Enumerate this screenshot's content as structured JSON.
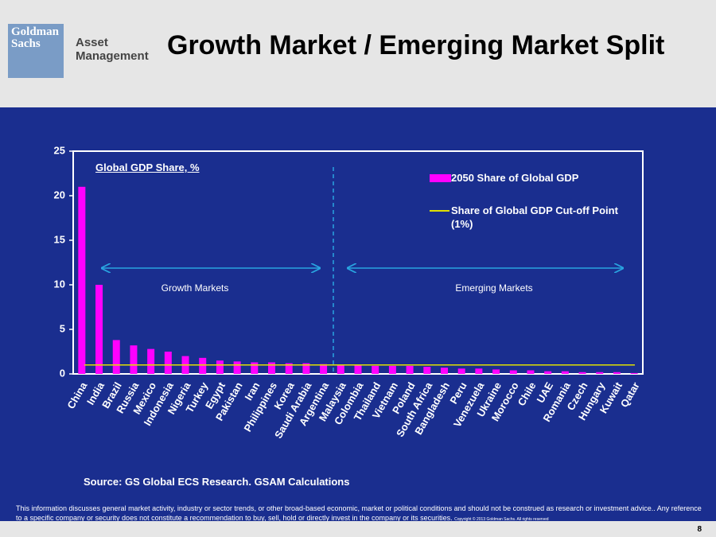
{
  "header": {
    "logo": "Goldman Sachs",
    "division": "Asset Management",
    "title": "Growth Market / Emerging Market Split"
  },
  "chart_data": {
    "type": "bar",
    "y_label": "Global GDP Share, %",
    "categories": [
      "China",
      "India",
      "Brazil",
      "Russia",
      "Mexico",
      "Indonesia",
      "Nigeria",
      "Turkey",
      "Egypt",
      "Pakistan",
      "Iran",
      "Philippines",
      "Korea",
      "Saudi Arabia",
      "Argentina",
      "Malaysia",
      "Colombia",
      "Thailand",
      "Vietnam",
      "Poland",
      "South Africa",
      "Bangladesh",
      "Peru",
      "Venezuela",
      "Ukraine",
      "Morocco",
      "Chile",
      "UAE",
      "Romania",
      "Czech",
      "Hungary",
      "Kuwait",
      "Qatar"
    ],
    "series": [
      {
        "name": "2050 Share of Global GDP",
        "color": "#ff00ff",
        "values": [
          21,
          10,
          3.8,
          3.2,
          2.8,
          2.5,
          2.0,
          1.8,
          1.5,
          1.4,
          1.3,
          1.3,
          1.2,
          1.2,
          1.1,
          1.0,
          1.0,
          0.9,
          0.9,
          0.9,
          0.8,
          0.7,
          0.6,
          0.6,
          0.5,
          0.4,
          0.4,
          0.3,
          0.3,
          0.2,
          0.2,
          0.2,
          0.1
        ]
      }
    ],
    "reference_line": {
      "name": "Share of Global GDP Cut-off Point (1%)",
      "color": "#e0e000",
      "value": 1
    },
    "ylim": [
      0,
      25
    ],
    "yticks": [
      0,
      5,
      10,
      15,
      20,
      25
    ],
    "grid": false,
    "annotations": [
      "Growth Markets",
      "Emerging Markets"
    ],
    "source": "Source: GS Global ECS Research. GSAM Calculations"
  },
  "footer": {
    "disclaimer": "This information discusses general market activity, industry or sector trends, or other broad-based economic, market or political conditions and should not be construed as research or investment advice.. Any reference to a specific company or security does not constitute a recommendation to buy, sell, hold or directly invest in the company or its securities.",
    "copyright": "Copyright © 2013 Goldman Sachs. All rights reserved",
    "page": "8"
  }
}
